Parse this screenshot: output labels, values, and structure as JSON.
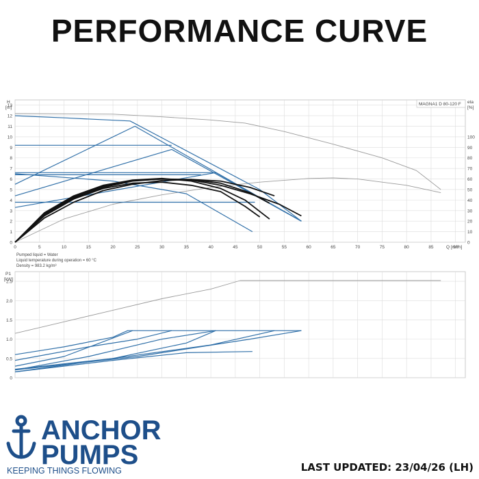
{
  "page": {
    "title": "PERFORMANCE CURVE",
    "last_updated": "LAST UPDATED: 23/04/26 (LH)"
  },
  "brand": {
    "line1": "ANCHOR",
    "line2": "PUMPS",
    "tagline": "KEEPING THINGS FLOWING",
    "color": "#1e4f8a",
    "icon": "anchor-icon"
  },
  "colors": {
    "blue": "#2f6fa8",
    "black": "#111111",
    "gray": "#9a9a9a",
    "grid": "#dcdcdc"
  },
  "chart_data": [
    {
      "type": "line",
      "product": "MAGNA1 D 80-120 F",
      "xlabel": "Q [m³/h]",
      "ylabel": "H\n[m]",
      "y2label": "eta\n[%]",
      "xlim": [
        0,
        92
      ],
      "ylim": [
        0,
        13.5
      ],
      "y2lim": [
        0,
        135
      ],
      "xticks": [
        0,
        5,
        10,
        15,
        20,
        25,
        30,
        35,
        40,
        45,
        50,
        55,
        60,
        65,
        70,
        75,
        80,
        85,
        90
      ],
      "yticks": [
        0,
        1,
        2,
        3,
        4,
        5,
        6,
        7,
        8,
        9,
        10,
        11,
        12,
        13
      ],
      "y2ticks": [
        0,
        10,
        20,
        30,
        40,
        50,
        60,
        70,
        80,
        90,
        100
      ],
      "grid": true,
      "notes": [
        "Pumped liquid = Water",
        "Liquid temperature during operation = 60 °C",
        "Density = 983.2 kg/m³"
      ],
      "series": [
        {
          "kind": "gray",
          "axis": "left",
          "points": [
            [
              0,
              12.2
            ],
            [
              20,
              12.15
            ],
            [
              30,
              11.9
            ],
            [
              40,
              11.6
            ],
            [
              47,
              11.3
            ],
            [
              55,
              10.5
            ],
            [
              65,
              9.3
            ],
            [
              75,
              8.0
            ],
            [
              82,
              6.8
            ],
            [
              87,
              5.0
            ]
          ]
        },
        {
          "kind": "gray",
          "axis": "right",
          "points": [
            [
              0,
              0
            ],
            [
              10,
              22
            ],
            [
              20,
              36
            ],
            [
              30,
              45
            ],
            [
              40,
              52
            ],
            [
              50,
              57
            ],
            [
              60,
              60.5
            ],
            [
              65,
              61
            ],
            [
              70,
              60
            ],
            [
              80,
              54
            ],
            [
              87,
              47
            ]
          ]
        },
        {
          "kind": "blue",
          "axis": "left",
          "points": [
            [
              0,
              12.0
            ],
            [
              10,
              11.8
            ],
            [
              23.5,
              11.5
            ],
            [
              50,
              5.0
            ],
            [
              58.5,
              2.0
            ]
          ]
        },
        {
          "kind": "blue",
          "axis": "left",
          "points": [
            [
              0,
              5.5
            ],
            [
              24.5,
              11.0
            ],
            [
              58.5,
              2.0
            ]
          ]
        },
        {
          "kind": "blue",
          "axis": "left",
          "points": [
            [
              0,
              4.4
            ],
            [
              32,
              8.8
            ],
            [
              58.5,
              2.0
            ]
          ]
        },
        {
          "kind": "blue",
          "axis": "left",
          "points": [
            [
              0,
              3.3
            ],
            [
              41,
              6.6
            ],
            [
              58.5,
              2.0
            ]
          ]
        },
        {
          "kind": "blue",
          "axis": "left",
          "points": [
            [
              0,
              6.5
            ],
            [
              20,
              5.8
            ],
            [
              35,
              4.6
            ],
            [
              48.5,
              1.0
            ]
          ]
        },
        {
          "kind": "blue",
          "axis": "left",
          "points": [
            [
              0,
              9.2
            ],
            [
              32,
              9.2
            ]
          ]
        },
        {
          "kind": "blue",
          "axis": "left",
          "points": [
            [
              0,
              6.6
            ],
            [
              41,
              6.6
            ]
          ]
        },
        {
          "kind": "blue",
          "axis": "left",
          "points": [
            [
              0,
              6.4
            ],
            [
              38,
              6.4
            ]
          ]
        },
        {
          "kind": "blue",
          "axis": "left",
          "points": [
            [
              0,
              3.8
            ],
            [
              49,
              3.8
            ]
          ]
        },
        {
          "kind": "black",
          "axis": "left",
          "points": [
            [
              0,
              0
            ],
            [
              6,
              2.8
            ],
            [
              12,
              4.4
            ],
            [
              18,
              5.4
            ],
            [
              24,
              5.9
            ],
            [
              30,
              6.05
            ],
            [
              36,
              5.8
            ],
            [
              42,
              5.1
            ],
            [
              47,
              4.0
            ],
            [
              52,
              2.2
            ]
          ]
        },
        {
          "kind": "black",
          "axis": "left",
          "points": [
            [
              0,
              0
            ],
            [
              6,
              2.7
            ],
            [
              12,
              4.3
            ],
            [
              18,
              5.3
            ],
            [
              24,
              5.85
            ],
            [
              30,
              6.0
            ],
            [
              36,
              5.9
            ],
            [
              42,
              5.4
            ],
            [
              48,
              4.6
            ],
            [
              54,
              3.6
            ],
            [
              58.5,
              2.5
            ]
          ]
        },
        {
          "kind": "black",
          "axis": "left",
          "points": [
            [
              0,
              0
            ],
            [
              6,
              2.5
            ],
            [
              12,
              4.1
            ],
            [
              18,
              5.1
            ],
            [
              24,
              5.6
            ],
            [
              30,
              5.7
            ],
            [
              36,
              5.4
            ],
            [
              42,
              4.8
            ],
            [
              47,
              3.4
            ],
            [
              50,
              2.4
            ]
          ]
        },
        {
          "kind": "black",
          "axis": "left",
          "points": [
            [
              0,
              0
            ],
            [
              6,
              2.6
            ],
            [
              12,
              4.2
            ],
            [
              18,
              5.2
            ],
            [
              24,
              5.8
            ],
            [
              30,
              6.0
            ],
            [
              36,
              5.95
            ],
            [
              42,
              5.6
            ],
            [
              48,
              4.7
            ],
            [
              52,
              3.7
            ]
          ]
        },
        {
          "kind": "black",
          "axis": "left",
          "points": [
            [
              0,
              0
            ],
            [
              6,
              2.3
            ],
            [
              12,
              3.8
            ],
            [
              18,
              4.9
            ],
            [
              24,
              5.5
            ],
            [
              30,
              5.85
            ],
            [
              36,
              5.95
            ],
            [
              42,
              5.8
            ],
            [
              48,
              5.2
            ],
            [
              53,
              4.4
            ]
          ]
        }
      ]
    },
    {
      "type": "line",
      "ylabel": "P1\n[kW]",
      "xlim": [
        0,
        92
      ],
      "ylim": [
        0,
        2.75
      ],
      "yticks": [
        "0",
        "0.5",
        "1.0",
        "1.5",
        "2.0",
        "2.5"
      ],
      "grid": true,
      "series": [
        {
          "kind": "gray",
          "points": [
            [
              0,
              1.15
            ],
            [
              10,
              1.45
            ],
            [
              20,
              1.75
            ],
            [
              30,
              2.05
            ],
            [
              40,
              2.3
            ],
            [
              46,
              2.52
            ],
            [
              87,
              2.52
            ]
          ]
        },
        {
          "kind": "blue",
          "points": [
            [
              0,
              0.6
            ],
            [
              10,
              0.8
            ],
            [
              20,
              1.05
            ],
            [
              23,
              1.22
            ],
            [
              58.5,
              1.22
            ]
          ]
        },
        {
          "kind": "blue",
          "points": [
            [
              0,
              0.45
            ],
            [
              15,
              0.8
            ],
            [
              25,
              1.0
            ],
            [
              32,
              1.22
            ]
          ]
        },
        {
          "kind": "blue",
          "points": [
            [
              0,
              0.2
            ],
            [
              15,
              0.55
            ],
            [
              30,
              1.0
            ],
            [
              41,
              1.22
            ]
          ]
        },
        {
          "kind": "blue",
          "points": [
            [
              0,
              0.3
            ],
            [
              10,
              0.55
            ],
            [
              24,
              1.22
            ]
          ]
        },
        {
          "kind": "blue",
          "points": [
            [
              0,
              0.15
            ],
            [
              20,
              0.5
            ],
            [
              35,
              0.9
            ],
            [
              41,
              1.22
            ]
          ]
        },
        {
          "kind": "blue",
          "points": [
            [
              0,
              0.22
            ],
            [
              20,
              0.5
            ],
            [
              40,
              0.85
            ],
            [
              53,
              1.22
            ]
          ]
        },
        {
          "kind": "blue",
          "points": [
            [
              0,
              0.15
            ],
            [
              20,
              0.45
            ],
            [
              35,
              0.65
            ],
            [
              48.5,
              0.68
            ]
          ]
        },
        {
          "kind": "blue",
          "points": [
            [
              0,
              0.2
            ],
            [
              25,
              0.55
            ],
            [
              48,
              1.0
            ],
            [
              58.5,
              1.22
            ]
          ]
        }
      ]
    }
  ]
}
